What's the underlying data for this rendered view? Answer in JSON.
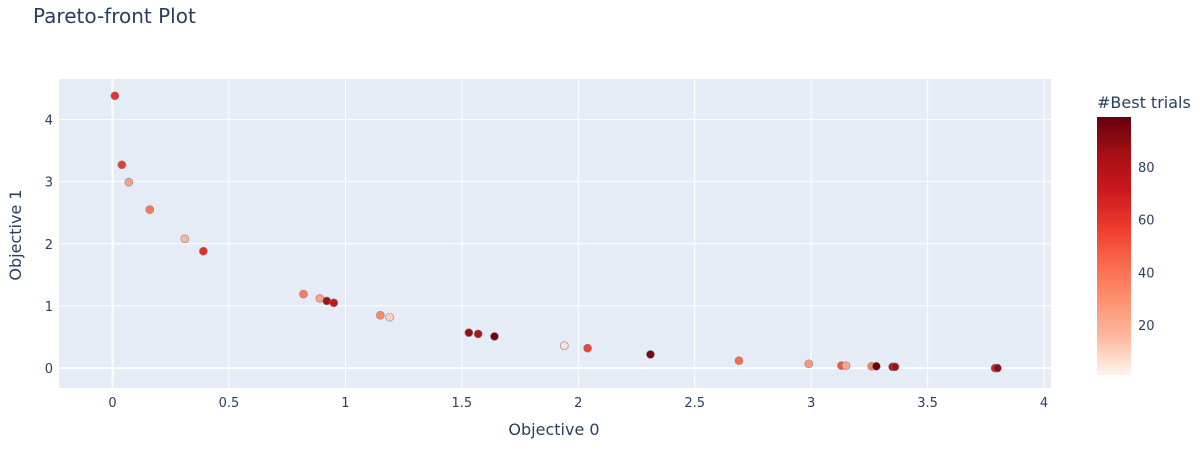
{
  "chart_data": {
    "type": "scatter",
    "title": "Pareto-front Plot",
    "xlabel": "Objective 0",
    "ylabel": "Objective 1",
    "xlim": [
      -0.23,
      4.03
    ],
    "ylim": [
      -0.32,
      4.65
    ],
    "xticks": [
      0,
      0.5,
      1,
      1.5,
      2,
      2.5,
      3,
      3.5,
      4
    ],
    "yticks": [
      0,
      1,
      2,
      3,
      4
    ],
    "grid": true,
    "background": "#e5ecf6",
    "colorscale": "Reds",
    "colorbar": {
      "title": "#Best trials",
      "range": [
        1,
        99
      ],
      "ticks": [
        20,
        40,
        60,
        80
      ],
      "colors": [
        "#fff5f0",
        "#fcbba1",
        "#fc9272",
        "#fb6a4a",
        "#ef3b2c",
        "#cb181d",
        "#a50f15",
        "#67000d"
      ]
    },
    "points": [
      {
        "x": 0.01,
        "y": 4.38,
        "c": 60
      },
      {
        "x": 0.04,
        "y": 3.27,
        "c": 57
      },
      {
        "x": 0.07,
        "y": 2.99,
        "c": 24
      },
      {
        "x": 0.16,
        "y": 2.55,
        "c": 38
      },
      {
        "x": 0.31,
        "y": 2.08,
        "c": 16
      },
      {
        "x": 0.39,
        "y": 1.88,
        "c": 62
      },
      {
        "x": 0.82,
        "y": 1.19,
        "c": 37
      },
      {
        "x": 0.89,
        "y": 1.12,
        "c": 24
      },
      {
        "x": 0.92,
        "y": 1.08,
        "c": 85
      },
      {
        "x": 0.95,
        "y": 1.05,
        "c": 72
      },
      {
        "x": 1.15,
        "y": 0.85,
        "c": 32
      },
      {
        "x": 1.19,
        "y": 0.82,
        "c": 10
      },
      {
        "x": 1.53,
        "y": 0.57,
        "c": 88
      },
      {
        "x": 1.57,
        "y": 0.55,
        "c": 80
      },
      {
        "x": 1.64,
        "y": 0.51,
        "c": 97
      },
      {
        "x": 1.94,
        "y": 0.36,
        "c": 6
      },
      {
        "x": 2.04,
        "y": 0.32,
        "c": 55
      },
      {
        "x": 2.31,
        "y": 0.22,
        "c": 95
      },
      {
        "x": 2.69,
        "y": 0.12,
        "c": 43
      },
      {
        "x": 2.99,
        "y": 0.07,
        "c": 27
      },
      {
        "x": 3.13,
        "y": 0.04,
        "c": 50
      },
      {
        "x": 3.15,
        "y": 0.04,
        "c": 22
      },
      {
        "x": 3.26,
        "y": 0.03,
        "c": 35
      },
      {
        "x": 3.28,
        "y": 0.03,
        "c": 98
      },
      {
        "x": 3.35,
        "y": 0.02,
        "c": 90
      },
      {
        "x": 3.36,
        "y": 0.02,
        "c": 85
      },
      {
        "x": 3.79,
        "y": 0.0,
        "c": 75
      },
      {
        "x": 3.8,
        "y": 0.0,
        "c": 90
      }
    ]
  }
}
